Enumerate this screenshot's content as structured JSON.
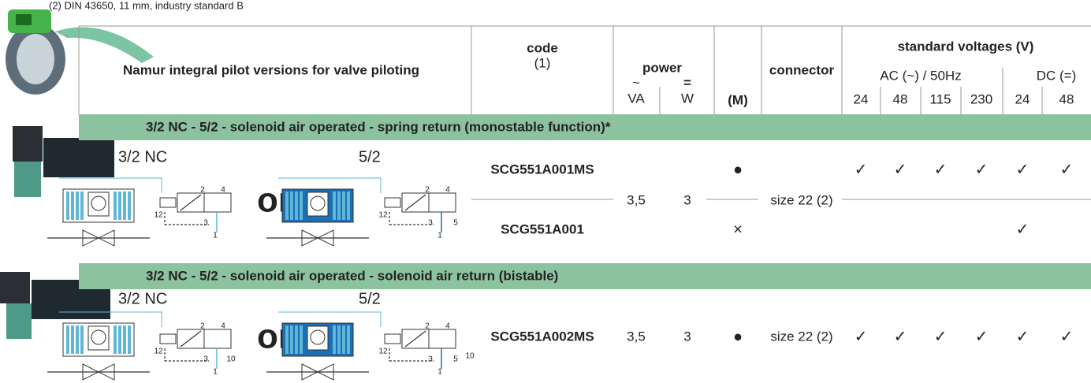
{
  "note": "(2)   DIN 43650, 11 mm, industry standard B",
  "header": {
    "title": "Namur integral pilot versions for valve piloting",
    "code": "code",
    "code_note": "(1)",
    "power": "power",
    "power_ac_symbol": "~",
    "power_dc_symbol": "=",
    "power_ac_unit": "VA",
    "power_dc_unit": "W",
    "m": "(M)",
    "connector": "connector",
    "voltages": "standard voltages (V)",
    "ac": "AC (~) / 50Hz",
    "dc": "DC (=)",
    "voltage_columns": [
      "24",
      "48",
      "115",
      "230",
      "24",
      "48"
    ]
  },
  "sections": [
    {
      "title": "3/2 NC - 5/2 - solenoid air operated - spring return (monostable function)*",
      "diagram_labels": [
        "3/2 NC",
        "5/2"
      ],
      "or": "or",
      "symbols": [
        {
          "ports": [
            "2",
            "4",
            "12",
            "3",
            "1"
          ]
        },
        {
          "ports": [
            "2",
            "4",
            "12",
            "3",
            "1",
            "5"
          ]
        }
      ],
      "power_va": "3,5",
      "power_w": "3",
      "connector": "size 22 (2)",
      "rows": [
        {
          "code": "SCG551A001MS",
          "m": "●",
          "voltages": [
            "✓",
            "✓",
            "✓",
            "✓",
            "✓",
            "✓"
          ]
        },
        {
          "code": "SCG551A001",
          "m": "×",
          "voltages": [
            null,
            null,
            null,
            null,
            "✓",
            null
          ]
        }
      ]
    },
    {
      "title": "3/2 NC - 5/2 - solenoid air operated - solenoid air return (bistable)",
      "diagram_labels": [
        "3/2 NC",
        "5/2"
      ],
      "or": "or",
      "symbols": [
        {
          "ports": [
            "2",
            "4",
            "12",
            "3",
            "1",
            "10"
          ]
        },
        {
          "ports": [
            "2",
            "4",
            "12",
            "3",
            "1",
            "5",
            "10"
          ]
        }
      ],
      "power_va": "3,5",
      "power_w": "3",
      "connector": "size 22 (2)",
      "rows": [
        {
          "code": "SCG551A002MS",
          "m": "●",
          "voltages": [
            "✓",
            "✓",
            "✓",
            "✓",
            "✓",
            "✓"
          ]
        }
      ]
    }
  ]
}
